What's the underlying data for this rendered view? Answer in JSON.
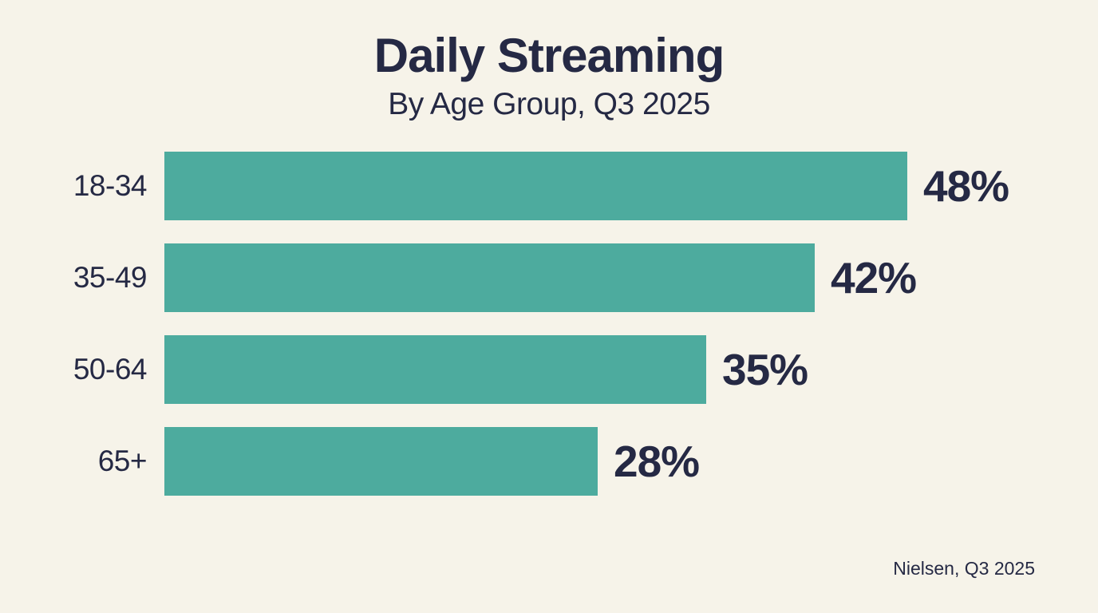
{
  "chart_data": {
    "type": "bar",
    "orientation": "horizontal",
    "title": "Daily Streaming",
    "subtitle": "By Age Group, Q3 2025",
    "categories": [
      "18-34",
      "35-49",
      "50-64",
      "65+"
    ],
    "values": [
      48,
      42,
      35,
      28
    ],
    "value_labels": [
      "48%",
      "42%",
      "35%",
      "28%"
    ],
    "unit": "%",
    "xlim": [
      0,
      50
    ],
    "grid": false,
    "legend": false,
    "source": "Nielsen, Q3 2025",
    "colors": {
      "background": "#f6f3e9",
      "bar": "#4dab9e",
      "text": "#252944"
    }
  }
}
